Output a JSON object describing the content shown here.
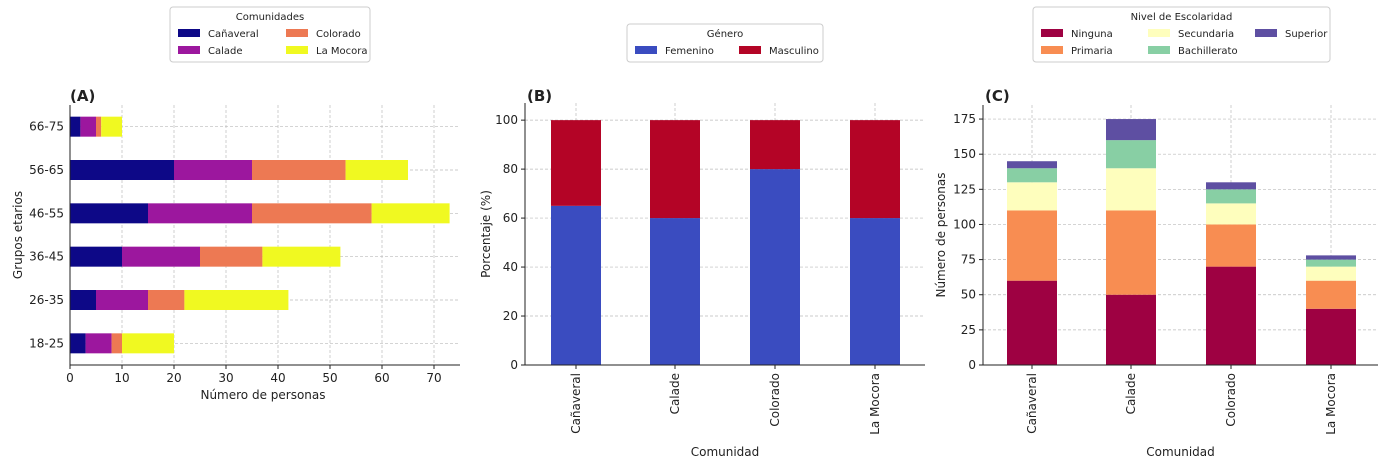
{
  "chart_data": [
    {
      "type": "bar",
      "orientation": "horizontal",
      "stacked": true,
      "panel_label": "(A)",
      "xlabel": "Número de personas",
      "ylabel": "Grupos etarios",
      "xlim": [
        0,
        75
      ],
      "xticks": [
        0,
        10,
        20,
        30,
        40,
        50,
        60,
        70
      ],
      "grid": true,
      "legend": {
        "title": "Comunidades",
        "placement": "top"
      },
      "categories": [
        "18-25",
        "26-35",
        "36-45",
        "46-55",
        "56-65",
        "66-75"
      ],
      "series": [
        {
          "name": "Cañaveral",
          "color": "#0d0887",
          "values": [
            3,
            5,
            10,
            15,
            20,
            2
          ]
        },
        {
          "name": "Calade",
          "color": "#9c179e",
          "values": [
            5,
            10,
            15,
            20,
            15,
            3
          ]
        },
        {
          "name": "Colorado",
          "color": "#ed7953",
          "values": [
            2,
            7,
            12,
            23,
            18,
            1
          ]
        },
        {
          "name": "La Mocora",
          "color": "#f0f921",
          "values": [
            10,
            20,
            15,
            15,
            12,
            4
          ]
        }
      ]
    },
    {
      "type": "bar",
      "stacked": true,
      "panel_label": "(B)",
      "xlabel": "Comunidad",
      "ylabel": "Porcentaje (%)",
      "ylim": [
        0,
        107
      ],
      "yticks": [
        0,
        20,
        40,
        60,
        80,
        100
      ],
      "grid": true,
      "legend": {
        "title": "Género",
        "placement": "top"
      },
      "categories": [
        "Cañaveral",
        "Calade",
        "Colorado",
        "La Mocora"
      ],
      "series": [
        {
          "name": "Femenino",
          "color": "#3a4cc0",
          "values": [
            65,
            60,
            80,
            60
          ]
        },
        {
          "name": "Masculino",
          "color": "#b40426",
          "values": [
            35,
            40,
            20,
            40
          ]
        }
      ]
    },
    {
      "type": "bar",
      "stacked": true,
      "panel_label": "(C)",
      "xlabel": "Comunidad",
      "ylabel": "Número de personas",
      "ylim": [
        0,
        185
      ],
      "yticks": [
        0,
        25,
        50,
        75,
        100,
        125,
        150,
        175
      ],
      "grid": true,
      "legend": {
        "title": "Nivel de Escolaridad",
        "placement": "top"
      },
      "categories": [
        "Cañaveral",
        "Calade",
        "Colorado",
        "La Mocora"
      ],
      "series": [
        {
          "name": "Ninguna",
          "color": "#9e0142",
          "values": [
            60,
            50,
            70,
            40
          ]
        },
        {
          "name": "Primaria",
          "color": "#f88d52",
          "values": [
            50,
            60,
            30,
            20
          ]
        },
        {
          "name": "Secundaria",
          "color": "#fefebd",
          "values": [
            20,
            30,
            15,
            10
          ]
        },
        {
          "name": "Bachillerato",
          "color": "#88cfa4",
          "values": [
            10,
            20,
            10,
            5
          ]
        },
        {
          "name": "Superior",
          "color": "#5e4fa2",
          "values": [
            5,
            15,
            5,
            3
          ]
        }
      ]
    }
  ]
}
